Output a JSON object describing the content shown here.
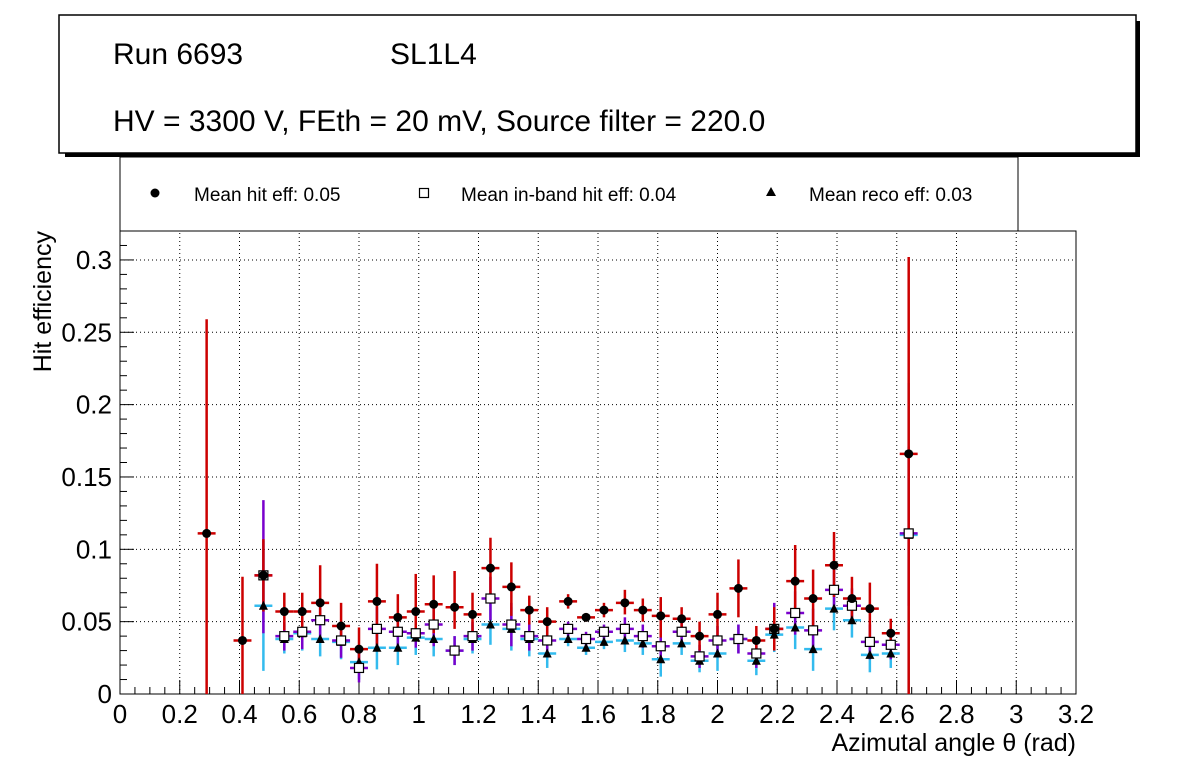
{
  "header": {
    "run": "Run 6693",
    "layer": "SL1L4",
    "conditions": "HV = 3300 V, FEth = 20 mV, Source filter = 220.0"
  },
  "legend": {
    "hit": "Mean hit  eff: 0.05",
    "inband": "Mean in-band hit eff: 0.04",
    "reco": "Mean reco eff: 0.03"
  },
  "colors": {
    "hit_error": "#cc0000",
    "inband_error": "#7a00cc",
    "reco_error": "#33bbee",
    "grid": "#000000"
  },
  "chart_data": {
    "type": "scatter",
    "xlabel": "Azimutal angle θ (rad)",
    "ylabel": "Hit efficiency",
    "xlim": [
      0,
      3.2
    ],
    "ylim": [
      0,
      0.32
    ],
    "xticks": [
      0,
      0.2,
      0.4,
      0.6,
      0.8,
      1,
      1.2,
      1.4,
      1.6,
      1.8,
      2,
      2.2,
      2.4,
      2.6,
      2.8,
      3,
      3.2
    ],
    "xtick_labels": [
      "0",
      "0.2",
      "0.4",
      "0.6",
      "0.8",
      "1",
      "1.2",
      "1.4",
      "1.6",
      "1.8",
      "2",
      "2.2",
      "2.4",
      "2.6",
      "2.8",
      "3",
      "3.2"
    ],
    "yticks": [
      0,
      0.05,
      0.1,
      0.15,
      0.2,
      0.25,
      0.3
    ],
    "ytick_labels": [
      "0",
      "0.05",
      "0.1",
      "0.15",
      "0.2",
      "0.25",
      "0.3"
    ],
    "grid": true,
    "bin_halfwidth": 0.03,
    "x": [
      0.29,
      0.41,
      0.48,
      0.55,
      0.61,
      0.67,
      0.74,
      0.8,
      0.86,
      0.93,
      0.99,
      1.05,
      1.12,
      1.18,
      1.24,
      1.31,
      1.37,
      1.43,
      1.5,
      1.56,
      1.62,
      1.69,
      1.75,
      1.81,
      1.88,
      1.94,
      2.0,
      2.07,
      2.13,
      2.19,
      2.26,
      2.32,
      2.39,
      2.45,
      2.51,
      2.58,
      2.64
    ],
    "series": [
      {
        "name": "Mean hit eff",
        "marker": "filled-circle",
        "values": [
          0.111,
          0.037,
          0.082,
          0.057,
          0.057,
          0.063,
          0.047,
          0.031,
          0.064,
          0.053,
          0.057,
          0.062,
          0.06,
          0.055,
          0.087,
          0.074,
          0.058,
          0.05,
          0.064,
          0.053,
          0.058,
          0.063,
          0.058,
          0.054,
          0.052,
          0.04,
          0.055,
          0.073,
          0.037,
          0.045,
          0.078,
          0.066,
          0.089,
          0.066,
          0.059,
          0.042,
          0.166
        ],
        "err_low": [
          0.111,
          0.037,
          0.025,
          0.013,
          0.013,
          0.015,
          0.012,
          0.01,
          0.03,
          0.013,
          0.012,
          0.02,
          0.015,
          0.015,
          0.02,
          0.02,
          0.01,
          0.01,
          0.005,
          0.003,
          0.005,
          0.008,
          0.008,
          0.015,
          0.008,
          0.01,
          0.015,
          0.02,
          0.01,
          0.015,
          0.025,
          0.02,
          0.022,
          0.015,
          0.025,
          0.01,
          0.166
        ],
        "err_high": [
          0.148,
          0.044,
          0.025,
          0.013,
          0.013,
          0.026,
          0.016,
          0.015,
          0.026,
          0.016,
          0.026,
          0.02,
          0.025,
          0.015,
          0.021,
          0.017,
          0.01,
          0.01,
          0.005,
          0.003,
          0.005,
          0.009,
          0.008,
          0.013,
          0.008,
          0.01,
          0.015,
          0.02,
          0.01,
          0.015,
          0.025,
          0.02,
          0.023,
          0.015,
          0.018,
          0.01,
          0.136
        ]
      },
      {
        "name": "Mean in-band hit eff",
        "marker": "open-square",
        "values": [
          null,
          null,
          0.082,
          0.04,
          0.043,
          0.051,
          0.037,
          0.018,
          0.045,
          0.043,
          0.042,
          0.048,
          0.03,
          0.04,
          0.066,
          0.048,
          0.04,
          0.037,
          0.045,
          0.038,
          0.043,
          0.045,
          0.04,
          0.033,
          0.043,
          0.026,
          0.037,
          0.038,
          0.028,
          0.045,
          0.056,
          0.044,
          0.072,
          0.061,
          0.036,
          0.034,
          0.111
        ],
        "err_low": [
          0,
          0,
          0.04,
          0.01,
          0.012,
          0.015,
          0.012,
          0.01,
          0.015,
          0.012,
          0.01,
          0.015,
          0.01,
          0.01,
          0.015,
          0.015,
          0.01,
          0.01,
          0.005,
          0.005,
          0.005,
          0.008,
          0.008,
          0.01,
          0.008,
          0.008,
          0.01,
          0.01,
          0.01,
          0.012,
          0.015,
          0.015,
          0.015,
          0.012,
          0.012,
          0.01,
          0.05
        ],
        "err_high": [
          0,
          0,
          0.052,
          0.01,
          0.012,
          0.015,
          0.012,
          0.01,
          0.015,
          0.012,
          0.01,
          0.015,
          0.01,
          0.01,
          0.015,
          0.015,
          0.01,
          0.01,
          0.005,
          0.005,
          0.005,
          0.008,
          0.008,
          0.01,
          0.008,
          0.008,
          0.01,
          0.01,
          0.01,
          0.018,
          0.015,
          0.015,
          0.015,
          0.012,
          0.012,
          0.01,
          0.06
        ]
      },
      {
        "name": "Mean reco eff",
        "marker": "filled-triangle",
        "values": [
          null,
          null,
          0.061,
          0.038,
          0.042,
          0.038,
          0.036,
          0.022,
          0.032,
          0.032,
          0.039,
          0.038,
          0.03,
          0.038,
          0.048,
          0.045,
          0.038,
          0.028,
          0.038,
          0.032,
          0.036,
          0.037,
          0.035,
          0.024,
          0.035,
          0.023,
          0.028,
          0.038,
          0.023,
          0.041,
          0.046,
          0.031,
          0.059,
          0.051,
          0.027,
          0.028,
          0.11
        ],
        "err_low": [
          0,
          0,
          0.045,
          0.01,
          0.012,
          0.012,
          0.012,
          0.012,
          0.015,
          0.012,
          0.012,
          0.012,
          0.01,
          0.01,
          0.014,
          0.015,
          0.012,
          0.01,
          0.005,
          0.005,
          0.005,
          0.008,
          0.008,
          0.012,
          0.008,
          0.008,
          0.012,
          0.01,
          0.01,
          0.012,
          0.015,
          0.015,
          0.015,
          0.012,
          0.012,
          0.01,
          0.11
        ],
        "err_high": [
          0,
          0,
          0.045,
          0.01,
          0.012,
          0.012,
          0.012,
          0.012,
          0.015,
          0.012,
          0.012,
          0.012,
          0.01,
          0.01,
          0.014,
          0.015,
          0.012,
          0.01,
          0.005,
          0.005,
          0.005,
          0.008,
          0.008,
          0.012,
          0.008,
          0.008,
          0.012,
          0.01,
          0.01,
          0.012,
          0.015,
          0.015,
          0.015,
          0.012,
          0.012,
          0.01,
          0.105
        ]
      }
    ]
  }
}
